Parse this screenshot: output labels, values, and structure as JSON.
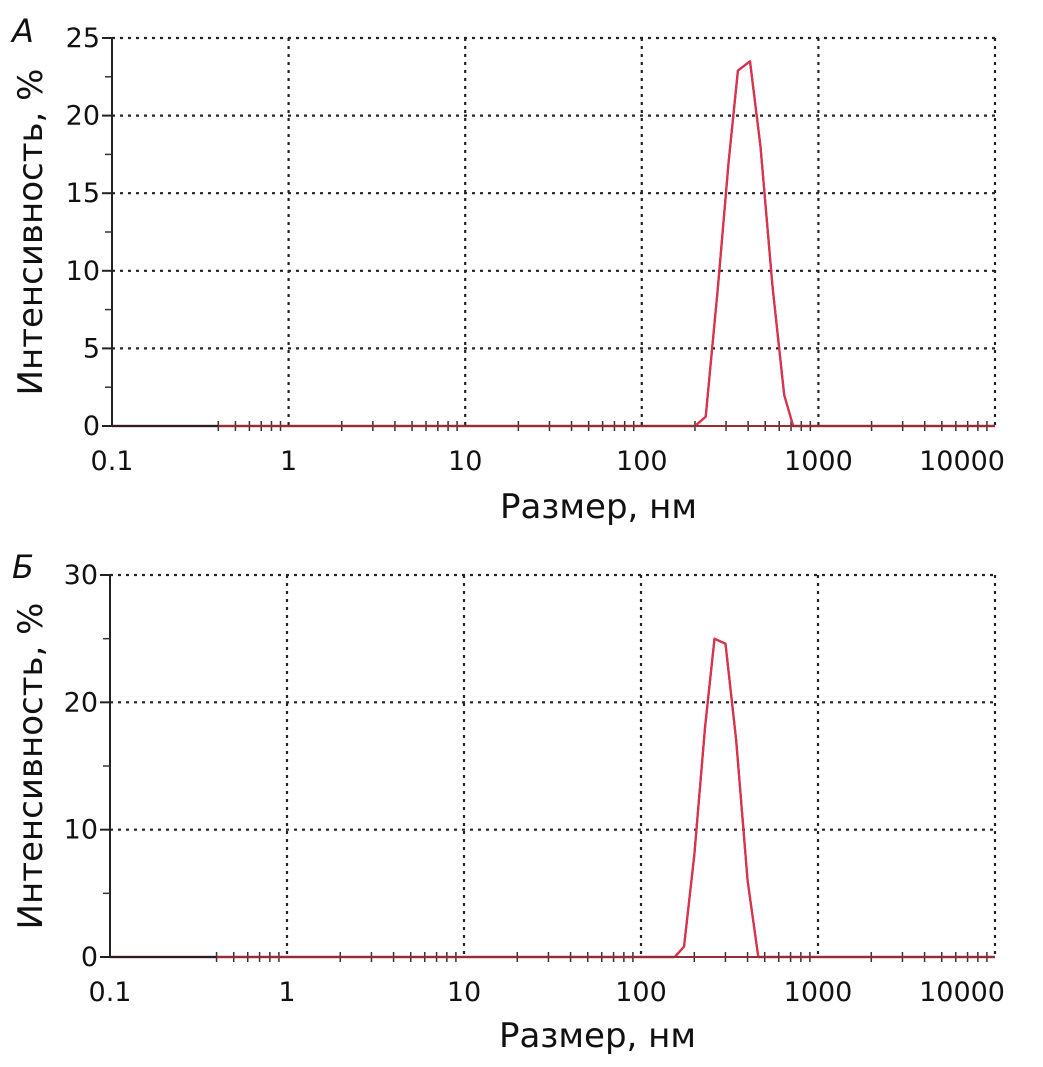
{
  "chart_data": [
    {
      "type": "line",
      "panel_label": "А",
      "xlabel": "Размер, нм",
      "ylabel": "Интенсивность, %",
      "xscale": "log",
      "xlim": [
        0.1,
        10000
      ],
      "ylim": [
        0,
        25
      ],
      "x_ticks": [
        "0.1",
        "1",
        "10",
        "100",
        "1000",
        "10000"
      ],
      "y_ticks": [
        "0",
        "5",
        "10",
        "15",
        "20",
        "25"
      ],
      "grid": true,
      "series": [
        {
          "color": "#e0304a",
          "x": [
            0.1,
            0.4,
            200,
            230,
            270,
            310,
            350,
            410,
            470,
            550,
            640,
            720,
            10000
          ],
          "y": [
            0,
            0,
            0,
            0.6,
            9,
            17,
            22.9,
            23.5,
            18,
            9,
            2,
            0,
            0
          ]
        }
      ]
    },
    {
      "type": "line",
      "panel_label": "Б",
      "xlabel": "Размер, нм",
      "ylabel": "Интенсивность, %",
      "xscale": "log",
      "xlim": [
        0.1,
        10000
      ],
      "ylim": [
        0,
        30
      ],
      "x_ticks": [
        "0.1",
        "1",
        "10",
        "100",
        "1000",
        "10000"
      ],
      "y_ticks": [
        "0",
        "10",
        "20",
        "30"
      ],
      "grid": true,
      "series": [
        {
          "color": "#e0304a",
          "x": [
            0.1,
            0.4,
            155,
            175,
            200,
            230,
            260,
            300,
            345,
            400,
            460,
            10000
          ],
          "y": [
            0,
            0,
            0,
            0.8,
            8,
            18,
            25,
            24.6,
            17,
            6,
            0,
            0
          ]
        }
      ]
    }
  ]
}
